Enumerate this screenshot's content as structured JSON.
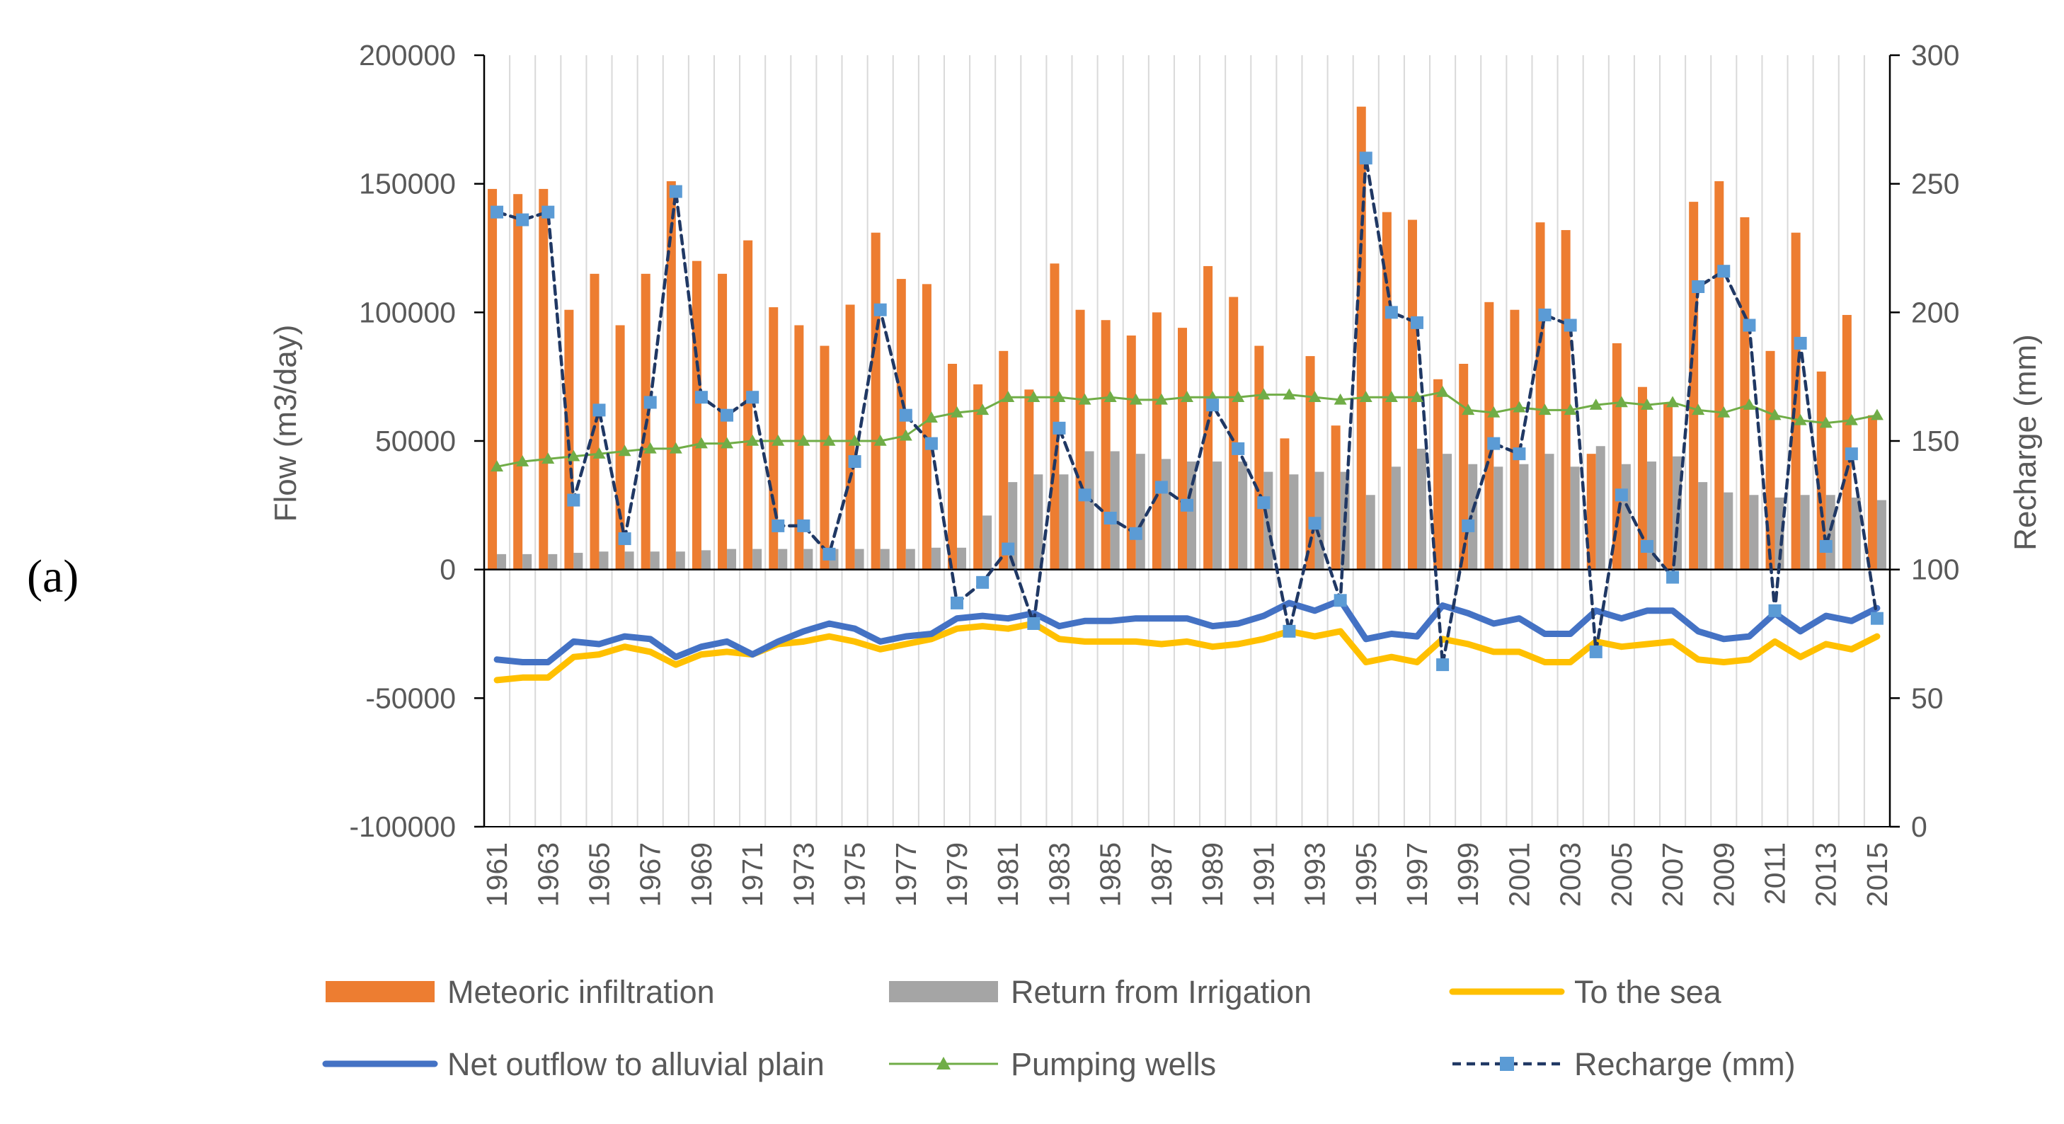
{
  "panel_label": "(a)",
  "chart_data": {
    "type": "bar",
    "x": [
      1961,
      1962,
      1963,
      1964,
      1965,
      1966,
      1967,
      1968,
      1969,
      1970,
      1971,
      1972,
      1973,
      1974,
      1975,
      1976,
      1977,
      1978,
      1979,
      1980,
      1981,
      1982,
      1983,
      1984,
      1985,
      1986,
      1987,
      1988,
      1989,
      1990,
      1991,
      1992,
      1993,
      1994,
      1995,
      1996,
      1997,
      1998,
      1999,
      2000,
      2001,
      2002,
      2003,
      2004,
      2005,
      2006,
      2007,
      2008,
      2009,
      2010,
      2011,
      2012,
      2013,
      2014,
      2015
    ],
    "x_tick_labels": [
      "1961",
      "1963",
      "1965",
      "1967",
      "1969",
      "1971",
      "1973",
      "1975",
      "1977",
      "1979",
      "1981",
      "1983",
      "1985",
      "1987",
      "1989",
      "1991",
      "1993",
      "1995",
      "1997",
      "1999",
      "2001",
      "2003",
      "2005",
      "2007",
      "2009",
      "2011",
      "2013",
      "2015"
    ],
    "ylabel": "Flow (m3/day)",
    "y2label": "Recharge (mm)",
    "ylim": [
      -100000,
      200000
    ],
    "y2lim": [
      0,
      300
    ],
    "y_ticks": [
      "200000",
      "150000",
      "100000",
      "50000",
      "0",
      "-50000",
      "-100000"
    ],
    "y2_ticks": [
      "300",
      "250",
      "200",
      "150",
      "100",
      "50",
      "0"
    ],
    "grid": "vertical",
    "legend_position": "bottom",
    "colors": {
      "meteoric": "#ED7D31",
      "irrigation": "#A5A5A5",
      "sea": "#FFC000",
      "net": "#4472C4",
      "pumping": "#70AD47",
      "recharge_line": "#203864",
      "recharge_marker": "#5B9BD5"
    },
    "series": [
      {
        "name": "Meteoric infiltration",
        "kind": "bar",
        "axis": "left",
        "values": [
          148000,
          146000,
          148000,
          101000,
          115000,
          95000,
          115000,
          151000,
          120000,
          115000,
          128000,
          102000,
          95000,
          87000,
          103000,
          131000,
          113000,
          111000,
          80000,
          72000,
          85000,
          70000,
          119000,
          101000,
          97000,
          91000,
          100000,
          94000,
          118000,
          106000,
          87000,
          51000,
          83000,
          56000,
          180000,
          139000,
          136000,
          74000,
          80000,
          104000,
          101000,
          135000,
          132000,
          45000,
          88000,
          71000,
          65000,
          143000,
          151000,
          137000,
          85000,
          131000,
          77000,
          99000,
          60000
        ]
      },
      {
        "name": "Return from Irrigation",
        "kind": "bar",
        "axis": "left",
        "values": [
          6000,
          6000,
          6000,
          6500,
          7000,
          7000,
          7000,
          7000,
          7500,
          8000,
          8000,
          8000,
          8000,
          8000,
          8000,
          8000,
          8000,
          8500,
          8500,
          21000,
          34000,
          37000,
          37000,
          46000,
          46000,
          45000,
          43000,
          42000,
          42000,
          42000,
          38000,
          37000,
          38000,
          38000,
          29000,
          40000,
          47000,
          45000,
          41000,
          40000,
          41000,
          45000,
          40000,
          48000,
          41000,
          42000,
          44000,
          34000,
          30000,
          29000,
          28000,
          29000,
          29000,
          28000,
          27000
        ]
      },
      {
        "name": "To the sea",
        "kind": "line",
        "axis": "left",
        "values": [
          -43000,
          -42000,
          -42000,
          -34000,
          -33000,
          -30000,
          -32000,
          -37000,
          -33000,
          -32000,
          -33000,
          -29000,
          -28000,
          -26000,
          -28000,
          -31000,
          -29000,
          -27000,
          -23000,
          -22000,
          -23000,
          -21000,
          -27000,
          -28000,
          -28000,
          -28000,
          -29000,
          -28000,
          -30000,
          -29000,
          -27000,
          -24000,
          -26000,
          -24000,
          -36000,
          -34000,
          -36000,
          -27000,
          -29000,
          -32000,
          -32000,
          -36000,
          -36000,
          -28000,
          -30000,
          -29000,
          -28000,
          -35000,
          -36000,
          -35000,
          -28000,
          -34000,
          -29000,
          -31000,
          -26000
        ]
      },
      {
        "name": "Net outflow to alluvial plain",
        "kind": "line",
        "axis": "left",
        "values": [
          -35000,
          -36000,
          -36000,
          -28000,
          -29000,
          -26000,
          -27000,
          -34000,
          -30000,
          -28000,
          -33000,
          -28000,
          -24000,
          -21000,
          -23000,
          -28000,
          -26000,
          -25000,
          -19000,
          -18000,
          -19000,
          -17000,
          -22000,
          -20000,
          -20000,
          -19000,
          -19000,
          -19000,
          -22000,
          -21000,
          -18000,
          -13000,
          -16000,
          -12000,
          -27000,
          -25000,
          -26000,
          -14000,
          -17000,
          -21000,
          -19000,
          -25000,
          -25000,
          -16000,
          -19000,
          -16000,
          -16000,
          -24000,
          -27000,
          -26000,
          -17000,
          -24000,
          -18000,
          -20000,
          -15000
        ]
      },
      {
        "name": "Pumping wells",
        "kind": "line-marker",
        "axis": "left",
        "values": [
          40000,
          42000,
          43000,
          44000,
          45000,
          46000,
          47000,
          47000,
          49000,
          49000,
          50000,
          50000,
          50000,
          50000,
          50000,
          50000,
          52000,
          59000,
          61000,
          62000,
          67000,
          67000,
          67000,
          66000,
          67000,
          66000,
          66000,
          67000,
          67000,
          67000,
          68000,
          68000,
          67000,
          66000,
          67000,
          67000,
          67000,
          69000,
          62000,
          61000,
          63000,
          62000,
          62000,
          64000,
          65000,
          64000,
          65000,
          62000,
          61000,
          64000,
          60000,
          58000,
          57000,
          58000,
          60000
        ]
      },
      {
        "name": "Recharge (mm)",
        "kind": "dashed-line-marker",
        "axis": "right",
        "values": [
          239,
          236,
          239,
          127,
          162,
          112,
          165,
          247,
          167,
          160,
          167,
          117,
          117,
          106,
          142,
          201,
          160,
          149,
          87,
          95,
          108,
          79,
          155,
          129,
          120,
          114,
          132,
          125,
          164,
          147,
          126,
          76,
          118,
          88,
          260,
          200,
          196,
          63,
          117,
          149,
          145,
          199,
          195,
          68,
          129,
          109,
          97,
          210,
          216,
          195,
          84,
          188,
          109,
          145,
          81
        ]
      }
    ]
  }
}
